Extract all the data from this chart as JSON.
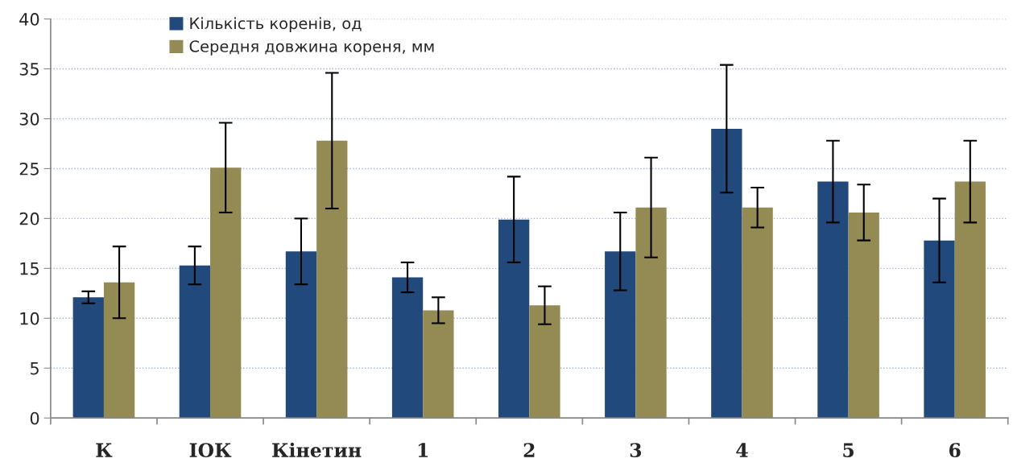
{
  "chart_data": {
    "type": "bar",
    "categories": [
      "К",
      "ІОК",
      "Кінетин",
      "1",
      "2",
      "3",
      "4",
      "5",
      "6"
    ],
    "series": [
      {
        "name": "Кількість коренів, од",
        "color": "#21497c",
        "values": [
          12.1,
          15.3,
          16.7,
          14.1,
          19.9,
          16.7,
          29.0,
          23.7,
          17.8
        ],
        "errors": [
          0.6,
          1.9,
          3.3,
          1.5,
          4.3,
          3.9,
          6.4,
          4.1,
          4.2
        ]
      },
      {
        "name": "Середня довжина кореня, мм",
        "color": "#948a54",
        "values": [
          13.6,
          25.1,
          27.8,
          10.8,
          11.3,
          21.1,
          21.1,
          20.6,
          23.7
        ],
        "errors": [
          3.6,
          4.5,
          6.8,
          1.3,
          1.9,
          5.0,
          2.0,
          2.8,
          4.1
        ]
      }
    ],
    "ylim": [
      0,
      40
    ],
    "yticks": [
      0,
      5,
      10,
      15,
      20,
      25,
      30,
      35,
      40
    ],
    "grid": "y",
    "legend": "top left"
  }
}
